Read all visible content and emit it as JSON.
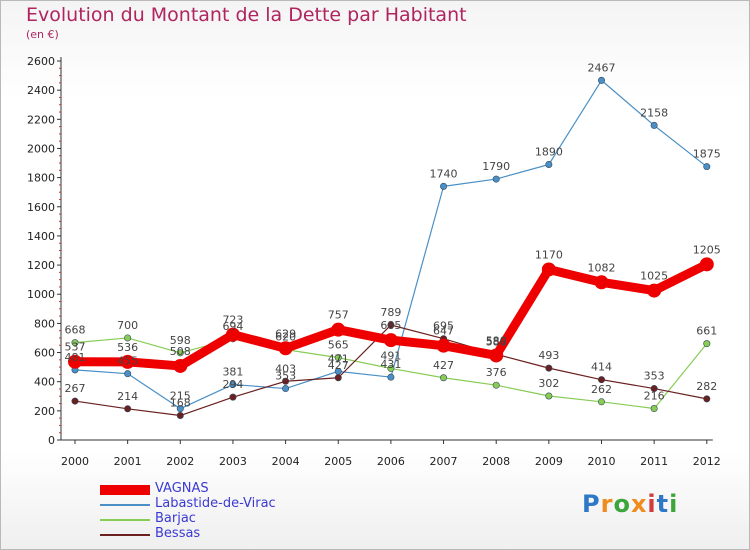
{
  "header": {
    "title": "Evolution du Montant de la Dette par Habitant",
    "subtitle": "(en €)"
  },
  "logo": {
    "letters": [
      "P",
      "r",
      "o",
      "x",
      "i",
      "t",
      "i"
    ],
    "colors": [
      "#2f78c8",
      "#f08c1e",
      "#3ca63c",
      "#f08c1e",
      "#d23c3c",
      "#2f78c8",
      "#3ca63c"
    ]
  },
  "chart_data": {
    "type": "line",
    "title": "Evolution du Montant de la Dette par Habitant",
    "subtitle": "(en €)",
    "xlabel": "",
    "ylabel": "",
    "ylim": [
      0,
      2600
    ],
    "yticks": [
      0,
      200,
      400,
      600,
      800,
      1000,
      1200,
      1400,
      1600,
      1800,
      2000,
      2200,
      2400,
      2600
    ],
    "grid": false,
    "legend_position": "bottom-left",
    "x": [
      "2000",
      "2001",
      "2002",
      "2003",
      "2004",
      "2005",
      "2006",
      "2007",
      "2008",
      "2009",
      "2010",
      "2011",
      "2012"
    ],
    "series": [
      {
        "name": "VAGNAS",
        "color": "#ee0000",
        "style": "thick",
        "values": [
          537,
          536,
          508,
          723,
          629,
          757,
          685,
          647,
          580,
          1170,
          1082,
          1025,
          1205
        ],
        "labels": [
          "537",
          "536",
          "508",
          "723",
          "629",
          "757",
          "685",
          "647",
          "580",
          "1170",
          "1082",
          "1025",
          "1205"
        ]
      },
      {
        "name": "Labastide-de-Virac",
        "color": "#4a90c6",
        "style": "thin",
        "values": [
          481,
          455,
          215,
          381,
          353,
          471,
          431,
          1740,
          1790,
          1890,
          2467,
          2158,
          1875
        ],
        "labels": [
          "481",
          "455",
          "215",
          "381",
          "353",
          "471",
          "431",
          "1740",
          "1790",
          "1890",
          "2467",
          "2158",
          "1875"
        ]
      },
      {
        "name": "Barjac",
        "color": "#88cc55",
        "style": "thin",
        "values": [
          668,
          700,
          598,
          694,
          620,
          565,
          491,
          427,
          376,
          302,
          262,
          216,
          661
        ],
        "labels": [
          "668",
          "700",
          "598",
          "694",
          "620",
          "565",
          "491",
          "427",
          "376",
          "302",
          "262",
          "216",
          "661"
        ]
      },
      {
        "name": "Bessas",
        "color": "#6b2020",
        "style": "thin",
        "values": [
          267,
          214,
          168,
          294,
          403,
          427,
          789,
          695,
          588,
          493,
          414,
          353,
          282
        ],
        "labels": [
          "267",
          "214",
          "168",
          "294",
          "403",
          "427",
          "789",
          "695",
          "588",
          "493",
          "414",
          "353",
          "282"
        ]
      }
    ]
  }
}
